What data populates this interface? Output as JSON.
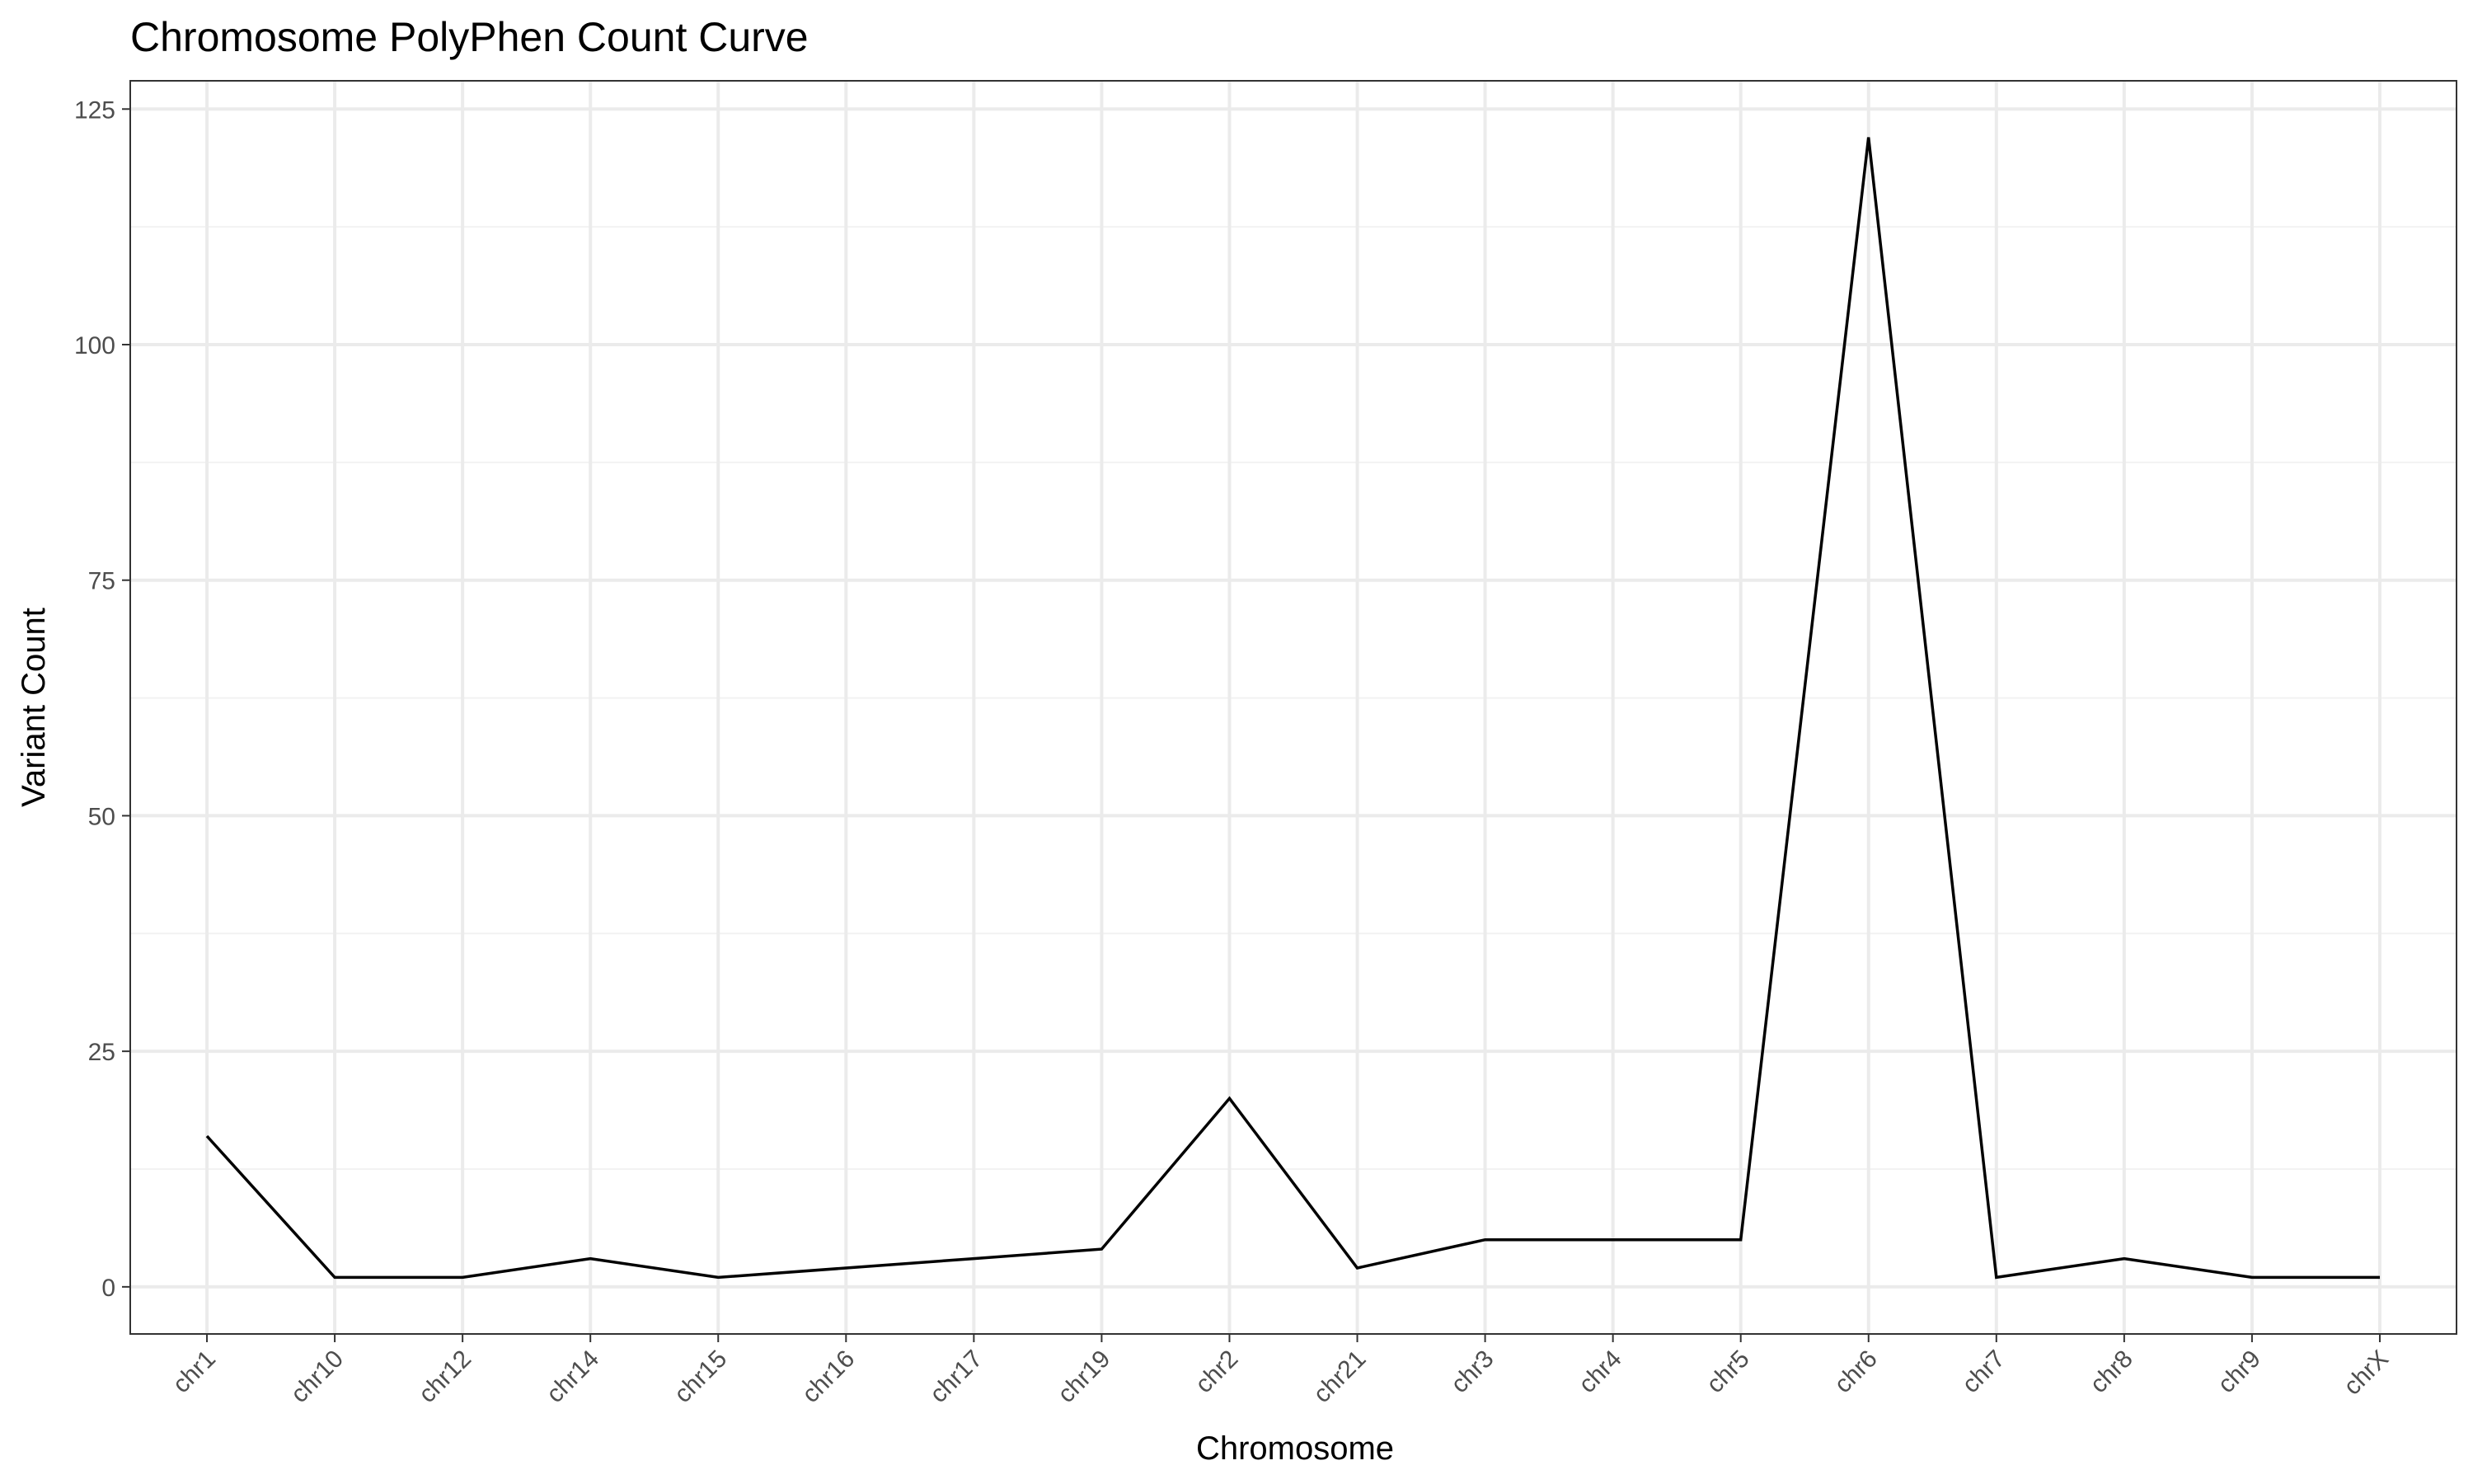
{
  "chart_data": {
    "type": "line",
    "title": "Chromosome PolyPhen Count Curve",
    "xlabel": "Chromosome",
    "ylabel": "Variant Count",
    "categories": [
      "chr1",
      "chr10",
      "chr12",
      "chr14",
      "chr15",
      "chr16",
      "chr17",
      "chr19",
      "chr2",
      "chr21",
      "chr3",
      "chr4",
      "chr5",
      "chr6",
      "chr7",
      "chr8",
      "chr9",
      "chrX"
    ],
    "series": [
      {
        "values": [
          16,
          1,
          1,
          3,
          1,
          2,
          3,
          4,
          20,
          2,
          5,
          5,
          5,
          122,
          1,
          3,
          1,
          1
        ]
      }
    ],
    "ylim": [
      -5,
      128
    ],
    "yticks": [
      0,
      25,
      50,
      75,
      100,
      125
    ],
    "grid": true,
    "line_color": "#000000",
    "legend": "none"
  }
}
